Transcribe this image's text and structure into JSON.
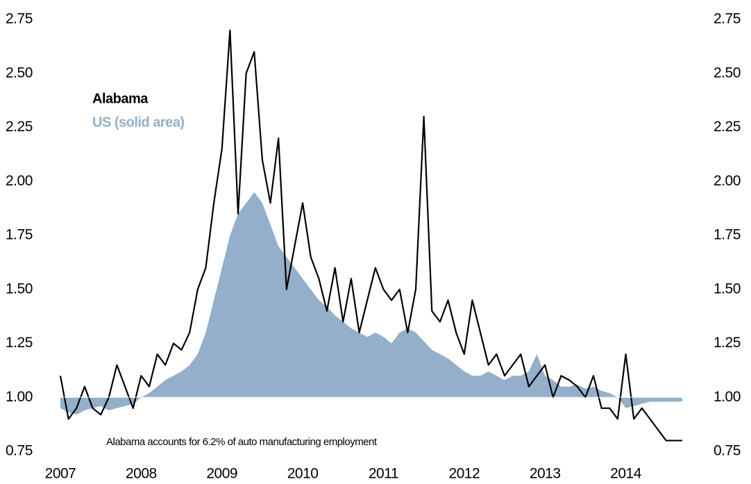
{
  "chart_data": {
    "type": "line",
    "annotations": [
      "Alabama accounts for 6.2% of auto manufacturing employment"
    ],
    "x": [
      2007.0,
      2007.1,
      2007.2,
      2007.3,
      2007.4,
      2007.5,
      2007.6,
      2007.7,
      2007.8,
      2007.9,
      2008.0,
      2008.1,
      2008.2,
      2008.3,
      2008.4,
      2008.5,
      2008.6,
      2008.7,
      2008.8,
      2008.9,
      2009.0,
      2009.1,
      2009.2,
      2009.3,
      2009.4,
      2009.5,
      2009.6,
      2009.7,
      2009.8,
      2009.9,
      2010.0,
      2010.1,
      2010.2,
      2010.3,
      2010.4,
      2010.5,
      2010.6,
      2010.7,
      2010.8,
      2010.9,
      2011.0,
      2011.1,
      2011.2,
      2011.3,
      2011.4,
      2011.5,
      2011.6,
      2011.7,
      2011.8,
      2011.9,
      2012.0,
      2012.1,
      2012.2,
      2012.3,
      2012.4,
      2012.5,
      2012.6,
      2012.7,
      2012.8,
      2012.9,
      2013.0,
      2013.1,
      2013.2,
      2013.3,
      2013.4,
      2013.5,
      2013.6,
      2013.7,
      2013.8,
      2013.9,
      2014.0,
      2014.1,
      2014.2,
      2014.3,
      2014.4,
      2014.5,
      2014.6,
      2014.7
    ],
    "series": [
      {
        "name": "US (solid area)",
        "color": "#93afc9",
        "fill": "area",
        "values": [
          0.95,
          0.93,
          0.92,
          0.94,
          0.95,
          0.96,
          0.94,
          0.95,
          0.96,
          0.97,
          1.0,
          1.02,
          1.05,
          1.08,
          1.1,
          1.12,
          1.15,
          1.2,
          1.3,
          1.45,
          1.6,
          1.75,
          1.85,
          1.9,
          1.95,
          1.9,
          1.8,
          1.7,
          1.65,
          1.6,
          1.55,
          1.5,
          1.45,
          1.42,
          1.38,
          1.35,
          1.32,
          1.3,
          1.28,
          1.3,
          1.28,
          1.25,
          1.3,
          1.32,
          1.3,
          1.26,
          1.22,
          1.2,
          1.18,
          1.15,
          1.12,
          1.1,
          1.1,
          1.12,
          1.1,
          1.08,
          1.1,
          1.1,
          1.12,
          1.2,
          1.1,
          1.08,
          1.05,
          1.05,
          1.06,
          1.04,
          1.05,
          1.03,
          1.02,
          1.0,
          0.95,
          0.96,
          0.97,
          0.98,
          0.98,
          0.98,
          0.98,
          0.98
        ]
      },
      {
        "name": "Alabama",
        "color": "#000000",
        "fill": "line",
        "values": [
          1.1,
          0.9,
          0.95,
          1.05,
          0.95,
          0.92,
          1.0,
          1.15,
          1.05,
          0.95,
          1.1,
          1.05,
          1.2,
          1.15,
          1.25,
          1.22,
          1.3,
          1.5,
          1.6,
          1.9,
          2.15,
          2.7,
          1.85,
          2.5,
          2.6,
          2.1,
          1.9,
          2.2,
          1.5,
          1.7,
          1.9,
          1.65,
          1.55,
          1.4,
          1.6,
          1.35,
          1.55,
          1.3,
          1.45,
          1.6,
          1.5,
          1.45,
          1.5,
          1.3,
          1.5,
          2.3,
          1.4,
          1.35,
          1.45,
          1.3,
          1.2,
          1.45,
          1.3,
          1.15,
          1.2,
          1.1,
          1.15,
          1.2,
          1.05,
          1.1,
          1.15,
          1.0,
          1.1,
          1.08,
          1.05,
          1.0,
          1.1,
          0.95,
          0.95,
          0.9,
          1.2,
          0.9,
          0.95,
          0.9,
          0.85,
          0.8,
          0.8,
          0.8
        ]
      }
    ],
    "baseline": 1.0,
    "xlim": [
      2007,
      2014.7
    ],
    "xticks": [
      2007,
      2008,
      2009,
      2010,
      2011,
      2012,
      2013,
      2014
    ],
    "ylim": [
      0.75,
      2.75
    ],
    "yticks": [
      0.75,
      {
        "value": 1,
        "label": "1.00"
      },
      1.25,
      {
        "value": 1.5,
        "label": "1.50"
      },
      1.75,
      {
        "value": 2,
        "label": "2.00"
      },
      2.25,
      {
        "value": 2.5,
        "label": "2.50"
      },
      2.75
    ],
    "y2lim": [
      0.75,
      2.75
    ],
    "y2ticks": [
      0.75,
      {
        "value": 1,
        "label": "1.00"
      },
      1.25,
      {
        "value": 1.5,
        "label": "1.50"
      },
      1.75,
      {
        "value": 2,
        "label": "2.00"
      },
      2.25,
      {
        "value": 2.5,
        "label": "2.50"
      },
      2.75
    ],
    "grid": false
  }
}
